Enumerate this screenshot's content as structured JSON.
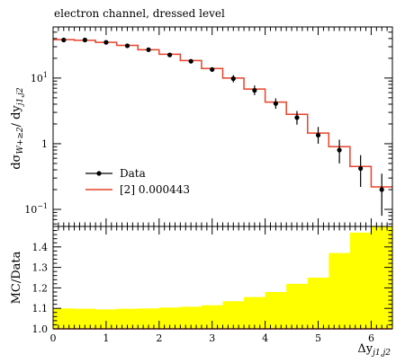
{
  "title": "electron channel, dressed level",
  "main_panel": {
    "y_label": "dσ_{W+≥2}/dy_{j1,j2}",
    "y_label_parts": {
      "main": "dσ",
      "sub1": "W+≥2",
      "slash": "/ dy",
      "sub2": "j1,j2"
    },
    "y_scale": "log",
    "y_ticks": [
      {
        "value": 0.1,
        "mantissa": "10",
        "exp": "−1"
      },
      {
        "value": 1,
        "label": "1"
      },
      {
        "value": 10,
        "mantissa": "10",
        "exp": "1"
      }
    ],
    "legend": {
      "data_label": "Data",
      "mc_label": "[2] 0.000443",
      "placement": "lower-left"
    }
  },
  "ratio_panel": {
    "y_label": "MC/Data",
    "y_ticks": [
      "1.0",
      "1.1",
      "1.2",
      "1.3",
      "1.4"
    ]
  },
  "x_axis": {
    "label_main": "Δy",
    "label_sub": "j1,j2",
    "ticks": [
      "0",
      "1",
      "2",
      "3",
      "4",
      "5",
      "6"
    ]
  },
  "colors": {
    "mc_line": "#e8422a",
    "band": "#ffff00",
    "data_marker": "#000000"
  },
  "chart_data": {
    "type": "line",
    "x_range": [
      0,
      6.4
    ],
    "bin_edges": [
      0,
      0.4,
      0.8,
      1.2,
      1.6,
      2.0,
      2.4,
      2.8,
      3.2,
      3.6,
      4.0,
      4.4,
      4.8,
      5.2,
      5.6,
      6.0,
      6.4
    ],
    "data": {
      "name": "Data",
      "x": [
        0.2,
        0.6,
        1.0,
        1.4,
        1.8,
        2.2,
        2.6,
        3.0,
        3.4,
        3.8,
        4.2,
        4.6,
        5.0,
        5.4,
        5.8,
        6.2
      ],
      "y": [
        38,
        38,
        35,
        31,
        27,
        22.5,
        18,
        13.5,
        9.8,
        6.5,
        4.1,
        2.5,
        1.35,
        0.8,
        0.42,
        0.2
      ],
      "y_err_low": [
        2.5,
        2.5,
        2.2,
        2.0,
        1.8,
        1.5,
        1.3,
        1.1,
        1.2,
        1.0,
        0.7,
        0.55,
        0.35,
        0.3,
        0.2,
        0.12
      ],
      "y_err_high": [
        2.5,
        2.5,
        2.2,
        2.0,
        1.8,
        1.5,
        1.3,
        1.1,
        1.3,
        1.2,
        0.8,
        0.65,
        0.45,
        0.35,
        0.25,
        0.15
      ]
    },
    "mc": {
      "name": "[2] 0.000443",
      "y": [
        38.5,
        37.5,
        35,
        31.5,
        27,
        23,
        18.5,
        14,
        10,
        6.8,
        4.3,
        2.8,
        1.45,
        0.9,
        0.45,
        0.22
      ]
    },
    "main_ylim": [
      0.055,
      60
    ],
    "ratio": {
      "ylim": [
        1.0,
        1.5
      ],
      "band_upper": [
        1.1,
        1.098,
        1.095,
        1.098,
        1.1,
        1.104,
        1.108,
        1.115,
        1.135,
        1.155,
        1.18,
        1.22,
        1.25,
        1.37,
        1.47,
        1.5
      ]
    }
  }
}
